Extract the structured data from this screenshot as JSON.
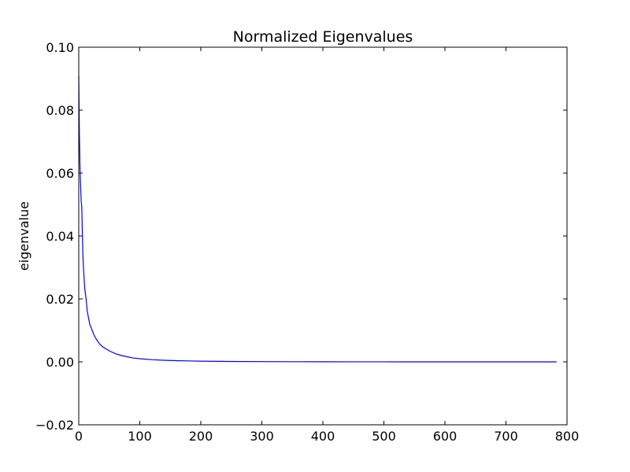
{
  "chart_data": {
    "type": "line",
    "title": "Normalized Eigenvalues",
    "xlabel": "",
    "ylabel": "eigenvalue",
    "xlim": [
      0,
      800
    ],
    "ylim": [
      -0.02,
      0.1
    ],
    "x_ticks": [
      "0",
      "100",
      "200",
      "300",
      "400",
      "500",
      "600",
      "700",
      "800"
    ],
    "y_ticks": [
      "−0.02",
      "0.00",
      "0.02",
      "0.04",
      "0.06",
      "0.08",
      "0.10"
    ],
    "grid": false,
    "series": [
      {
        "name": "",
        "color": "#0000ff",
        "x": [
          0,
          1,
          2,
          3,
          4,
          5,
          6,
          7,
          8,
          9,
          10,
          12,
          14,
          16,
          18,
          20,
          25,
          30,
          35,
          40,
          50,
          60,
          70,
          80,
          90,
          100,
          120,
          140,
          160,
          180,
          200,
          250,
          300,
          350,
          400,
          450,
          500,
          550,
          600,
          650,
          700,
          750,
          783
        ],
        "y": [
          0.091,
          0.073,
          0.062,
          0.056,
          0.051,
          0.049,
          0.04,
          0.033,
          0.029,
          0.026,
          0.023,
          0.02,
          0.016,
          0.014,
          0.012,
          0.011,
          0.0085,
          0.0068,
          0.0055,
          0.0047,
          0.0035,
          0.0026,
          0.002,
          0.0016,
          0.0012,
          0.001,
          0.0007,
          0.0005,
          0.00038,
          0.0003,
          0.00022,
          0.00012,
          8e-05,
          5e-05,
          3e-05,
          2e-05,
          1e-05,
          8e-06,
          5e-06,
          3e-06,
          2e-06,
          1e-06,
          0.0
        ]
      }
    ]
  }
}
